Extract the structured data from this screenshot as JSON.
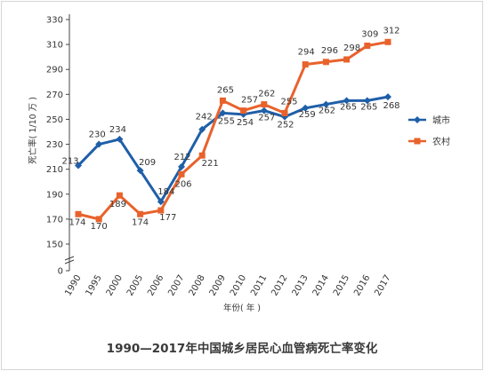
{
  "chart_data": {
    "type": "line",
    "title": "1990—2017年中国城乡居民心血管病死亡率变化",
    "xlabel": "年份( 年 )",
    "ylabel": "死亡率( 1/10 万 )",
    "categories": [
      "1990",
      "1995",
      "2000",
      "2005",
      "2006",
      "2007",
      "2008",
      "2009",
      "2010",
      "2011",
      "2012",
      "2013",
      "2014",
      "2015",
      "2016",
      "2017"
    ],
    "y_ticks": [
      0,
      150,
      170,
      190,
      210,
      230,
      250,
      270,
      290,
      310,
      330
    ],
    "ylim": [
      150,
      330
    ],
    "axis_break": true,
    "grid": false,
    "legend_position": "right",
    "series": [
      {
        "name": "城市",
        "color": "#1f5fa8",
        "marker": "diamond",
        "values": [
          213,
          230,
          234,
          209,
          184,
          212,
          242,
          255,
          254,
          257,
          252,
          259,
          262,
          265,
          265,
          268
        ]
      },
      {
        "name": "农村",
        "color": "#e8622c",
        "marker": "square",
        "values": [
          174,
          170,
          189,
          174,
          177,
          206,
          221,
          265,
          257,
          262,
          255,
          294,
          296,
          298,
          309,
          312
        ]
      }
    ]
  }
}
